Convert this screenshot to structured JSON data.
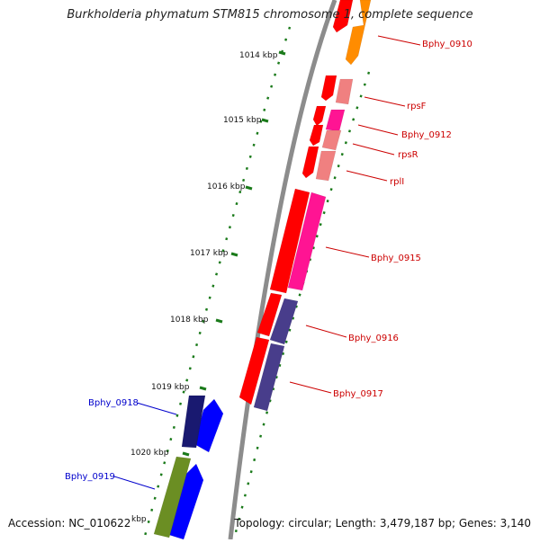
{
  "header": {
    "title": "Burkholderia phymatum STM815 chromosome 1, complete sequence"
  },
  "footer": {
    "accession": "Accession: NC_010622",
    "summary": "Topology: circular; Length: 3,479,187 bp; Genes: 3,140"
  },
  "map": {
    "tick_labels": [
      "1014 kbp",
      "1015 kbp",
      "1016 kbp",
      "1017 kbp",
      "1018 kbp",
      "1019 kbp",
      "1020 kbp",
      "kbp"
    ],
    "backbone_color": "#8c8c8c",
    "tick_color": "#1a7a1a",
    "label_colors": {
      "forward": "#cc0000",
      "reverse": "#0000cc"
    },
    "genes": [
      {
        "label": "Bphy_0910",
        "strand": "forward",
        "color": "#ff0000"
      },
      {
        "label": "",
        "strand": "forward",
        "color": "#ff8c00"
      },
      {
        "label": "",
        "strand": "forward",
        "color": "#ff0000"
      },
      {
        "label": "rpsF",
        "strand": "forward",
        "color": "#f08080"
      },
      {
        "label": "",
        "strand": "forward",
        "color": "#ff0000"
      },
      {
        "label": "Bphy_0912",
        "strand": "forward",
        "color": "#ff1493"
      },
      {
        "label": "",
        "strand": "forward",
        "color": "#ff0000"
      },
      {
        "label": "rpsR",
        "strand": "forward",
        "color": "#f08080"
      },
      {
        "label": "",
        "strand": "forward",
        "color": "#ff0000"
      },
      {
        "label": "rplI",
        "strand": "forward",
        "color": "#f08080"
      },
      {
        "label": "",
        "strand": "forward",
        "color": "#ff0000"
      },
      {
        "label": "Bphy_0915",
        "strand": "forward",
        "color": "#ff1493"
      },
      {
        "label": "",
        "strand": "forward",
        "color": "#ff0000"
      },
      {
        "label": "Bphy_0916",
        "strand": "forward",
        "color": "#483d8b"
      },
      {
        "label": "",
        "strand": "forward",
        "color": "#ff0000"
      },
      {
        "label": "Bphy_0917",
        "strand": "forward",
        "color": "#483d8b"
      },
      {
        "label": "Bphy_0918",
        "strand": "reverse",
        "color": "#0000ff"
      },
      {
        "label": "",
        "strand": "reverse",
        "color": "#191970"
      },
      {
        "label": "Bphy_0919",
        "strand": "reverse",
        "color": "#0000ff"
      },
      {
        "label": "",
        "strand": "reverse",
        "color": "#6b8e23"
      }
    ]
  }
}
